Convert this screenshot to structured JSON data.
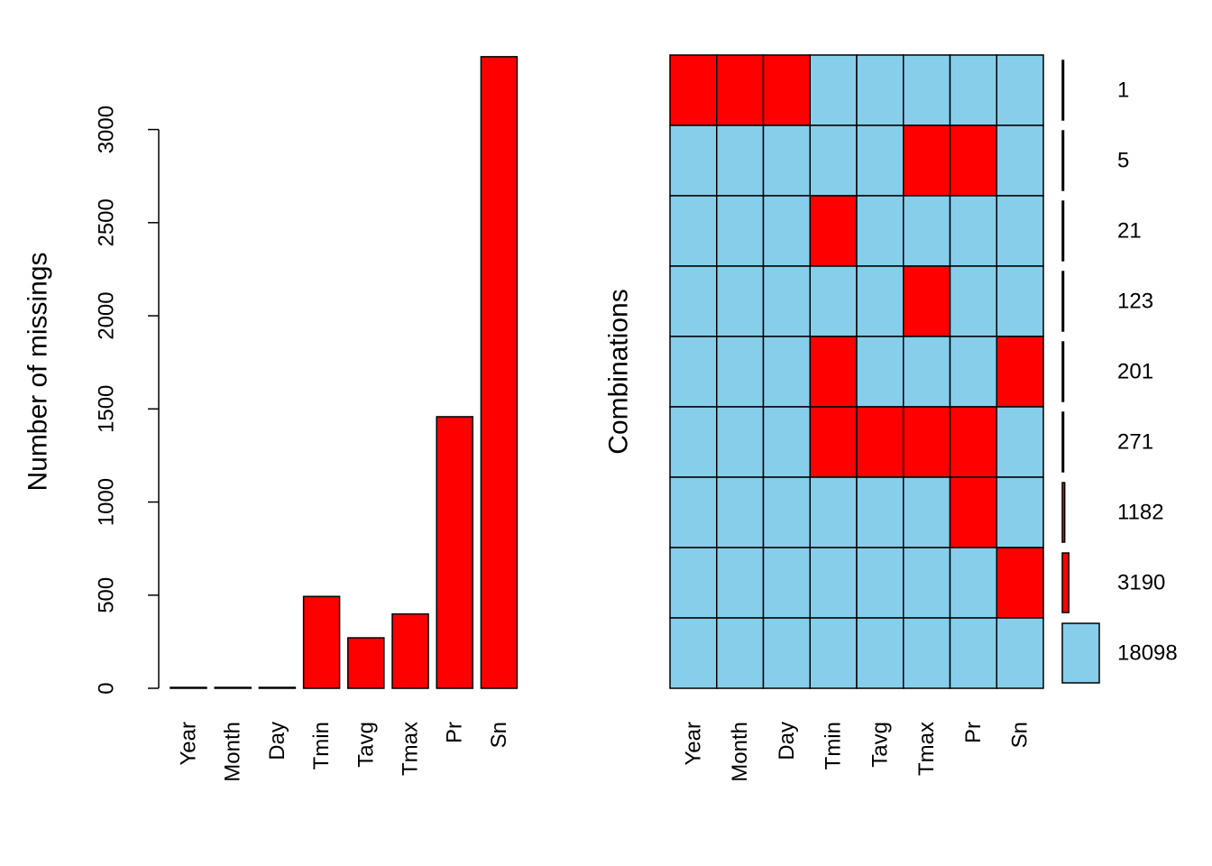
{
  "chart_data": [
    {
      "type": "bar",
      "ylabel": "Number of missings",
      "categories": [
        "Year",
        "Month",
        "Day",
        "Tmin",
        "Tavg",
        "Tmax",
        "Pr",
        "Sn"
      ],
      "values": [
        1,
        1,
        1,
        493,
        271,
        399,
        1458,
        3391
      ],
      "ylim": [
        0,
        3400
      ],
      "yticks": [
        "0",
        "500",
        "1000",
        "1500",
        "2000",
        "2500",
        "3000"
      ],
      "bar_color": "#ff0000",
      "grid": false
    },
    {
      "type": "heatmap",
      "ylabel": "Combinations",
      "variables": [
        "Year",
        "Month",
        "Day",
        "Tmin",
        "Tavg",
        "Tmax",
        "Pr",
        "Sn"
      ],
      "combinations": [
        {
          "pattern": [
            1,
            1,
            1,
            0,
            0,
            0,
            0,
            0
          ],
          "count": "1"
        },
        {
          "pattern": [
            0,
            0,
            0,
            0,
            0,
            1,
            1,
            0
          ],
          "count": "5"
        },
        {
          "pattern": [
            0,
            0,
            0,
            1,
            0,
            0,
            0,
            0
          ],
          "count": "21"
        },
        {
          "pattern": [
            0,
            0,
            0,
            0,
            0,
            1,
            0,
            0
          ],
          "count": "123"
        },
        {
          "pattern": [
            0,
            0,
            0,
            1,
            0,
            0,
            0,
            1
          ],
          "count": "201"
        },
        {
          "pattern": [
            0,
            0,
            0,
            1,
            1,
            1,
            1,
            0
          ],
          "count": "271"
        },
        {
          "pattern": [
            0,
            0,
            0,
            0,
            0,
            0,
            1,
            0
          ],
          "count": "1182"
        },
        {
          "pattern": [
            0,
            0,
            0,
            0,
            0,
            0,
            0,
            1
          ],
          "count": "3190"
        },
        {
          "pattern": [
            0,
            0,
            0,
            0,
            0,
            0,
            0,
            0
          ],
          "count": "18098"
        }
      ],
      "missing_color": "#ff0000",
      "present_color": "#87ceeb",
      "grid": false
    }
  ]
}
